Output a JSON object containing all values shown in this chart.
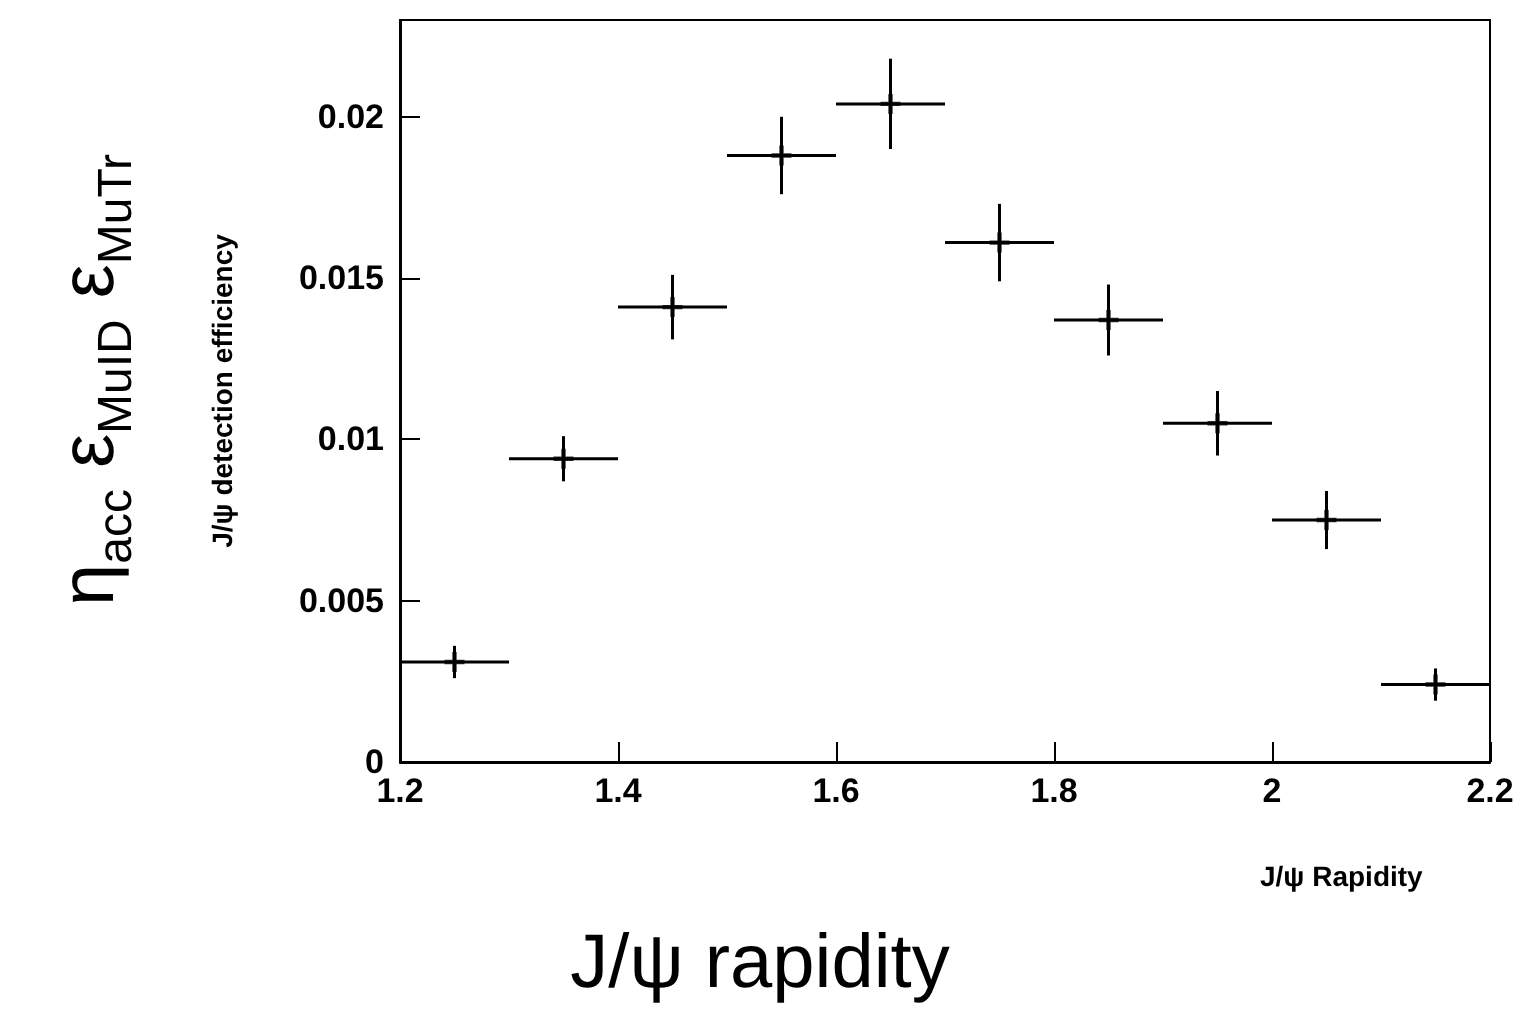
{
  "chart_data": {
    "type": "scatter",
    "xlabel": "J/ψ Rapidity",
    "ylabel": "J/ψ detection efficiency",
    "annotations": [
      "η$_{acc}$ ε$_{MuID}$ ε$_{MuTr}$",
      "J/ψ rapidity"
    ],
    "x": [
      1.25,
      1.35,
      1.45,
      1.55,
      1.65,
      1.75,
      1.85,
      1.95,
      2.05,
      2.15
    ],
    "values": [
      0.0031,
      0.0094,
      0.0141,
      0.0188,
      0.0204,
      0.0161,
      0.0137,
      0.0105,
      0.0075,
      0.0024
    ],
    "errors": [
      0.0005,
      0.0007,
      0.001,
      0.0012,
      0.0014,
      0.0012,
      0.0011,
      0.001,
      0.0009,
      0.0005
    ],
    "xerrors": [
      0.05,
      0.05,
      0.05,
      0.05,
      0.05,
      0.05,
      0.05,
      0.05,
      0.05,
      0.05
    ],
    "color": "#000000",
    "marker": "cross",
    "xlim": [
      1.2,
      2.2
    ],
    "xticks": [
      1.2,
      1.4,
      1.6,
      1.8,
      2,
      2.2
    ],
    "ylim": [
      0,
      0.023
    ],
    "yticks": [
      0,
      0.005,
      0.01,
      0.015,
      0.02
    ],
    "grid": false
  }
}
